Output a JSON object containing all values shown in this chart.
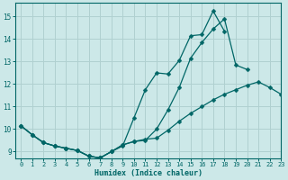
{
  "xlabel": "Humidex (Indice chaleur)",
  "bg_color": "#cce8e8",
  "grid_color": "#b0d0d0",
  "line_color": "#006666",
  "xlim": [
    -0.5,
    23
  ],
  "ylim": [
    8.7,
    15.6
  ],
  "xticks": [
    0,
    1,
    2,
    3,
    4,
    5,
    6,
    7,
    8,
    9,
    10,
    11,
    12,
    13,
    14,
    15,
    16,
    17,
    18,
    19,
    20,
    21,
    22,
    23
  ],
  "yticks": [
    9,
    10,
    11,
    12,
    13,
    14,
    15
  ],
  "series": [
    {
      "x": [
        0,
        1,
        2,
        3,
        4,
        5,
        6,
        7,
        8,
        9,
        10,
        11,
        12,
        13,
        14,
        15,
        16,
        17,
        18,
        19,
        20
      ],
      "y": [
        10.15,
        9.75,
        9.4,
        9.25,
        9.15,
        9.05,
        8.8,
        8.72,
        9.0,
        9.25,
        10.5,
        11.75,
        12.5,
        12.45,
        13.05,
        14.15,
        14.2,
        15.25,
        14.35,
        null,
        null
      ]
    },
    {
      "x": [
        0,
        1,
        2,
        3,
        4,
        5,
        6,
        7,
        8,
        9,
        10,
        11,
        12,
        13,
        14,
        15,
        16,
        17,
        18,
        19,
        20,
        21,
        22,
        23
      ],
      "y": [
        10.15,
        9.75,
        9.4,
        9.25,
        9.15,
        9.05,
        8.8,
        8.72,
        9.0,
        9.3,
        9.45,
        9.5,
        10.0,
        10.85,
        11.85,
        13.15,
        13.85,
        14.45,
        14.9,
        12.85,
        12.65,
        null,
        null,
        null
      ]
    },
    {
      "x": [
        0,
        1,
        2,
        3,
        4,
        5,
        6,
        7,
        8,
        9,
        10,
        11,
        12,
        13,
        14,
        15,
        16,
        17,
        18,
        19,
        20,
        21,
        22,
        23
      ],
      "y": [
        10.15,
        9.75,
        9.4,
        9.25,
        9.15,
        9.05,
        8.8,
        8.72,
        9.0,
        9.3,
        9.45,
        9.55,
        9.6,
        9.95,
        10.35,
        10.7,
        11.0,
        11.3,
        11.55,
        11.75,
        11.95,
        12.1,
        11.85,
        11.55
      ]
    }
  ]
}
